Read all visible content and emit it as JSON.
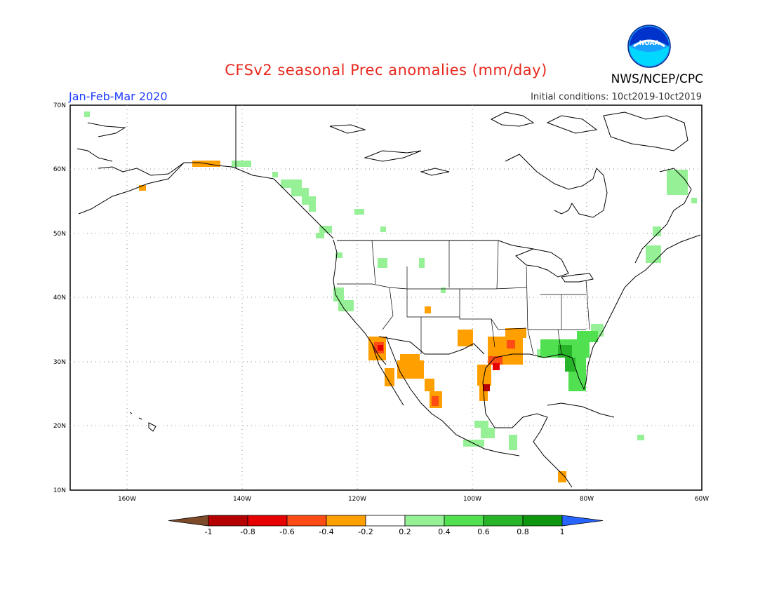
{
  "title": "CFSv2 seasonal Prec anomalies (mm/day)",
  "period": "Jan-Feb-Mar 2020",
  "initial_conditions": "Initial conditions: 10ct2019-10ct2019",
  "agency": "NWS/NCEP/CPC",
  "logo_text": "NOAA",
  "lat_labels": [
    "70N",
    "60N",
    "50N",
    "40N",
    "30N",
    "20N",
    "10N"
  ],
  "lon_labels": [
    "160W",
    "140W",
    "120W",
    "100W",
    "80W",
    "60W"
  ],
  "colorbar": {
    "labels": [
      "-1",
      "-0.8",
      "-0.6",
      "-0.4",
      "-0.2",
      "0.2",
      "0.4",
      "0.6",
      "0.8",
      "1"
    ],
    "colors": [
      "#7d4a2a",
      "#b40000",
      "#e60000",
      "#ff4b14",
      "#ff9f00",
      "#ffffff",
      "#96f096",
      "#50e050",
      "#28b428",
      "#0f960f",
      "#2864ff"
    ]
  },
  "anomaly_colors": {
    "dry_-0.2_-0.4": "#ff9f00",
    "dry_-0.4_-0.6": "#ff4b14",
    "dry_-0.6_-0.8": "#e60000",
    "dry_-0.8_-1": "#b40000",
    "wet_0.2_0.4": "#96f096",
    "wet_0.4_0.6": "#50e050",
    "wet_0.6_0.8": "#28b428"
  }
}
